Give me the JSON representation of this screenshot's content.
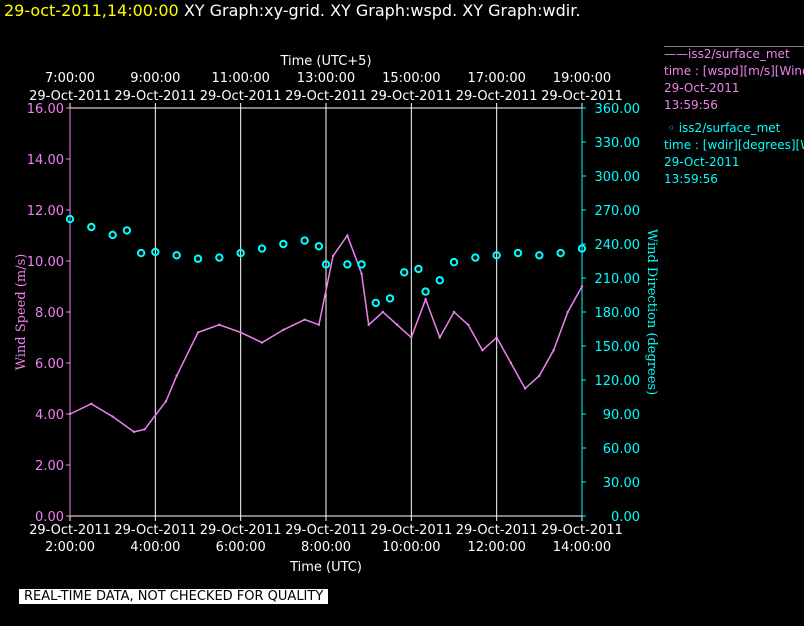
{
  "header": {
    "timestamp": "29-oct-2011,14:00:00",
    "titles": [
      "XY Graph:xy-grid.",
      "XY Graph:wspd.",
      "XY Graph:wdir."
    ]
  },
  "legend": {
    "wspd": {
      "name": "iss2/surface_met",
      "desc": "time : [wspd][m/s][Wind",
      "date": "29-Oct-2011",
      "time": "13:59:56"
    },
    "wdir": {
      "name": "iss2/surface_met",
      "desc": "time : [wdir][degrees][Wind",
      "date": "29-Oct-2011",
      "time": "13:59:56"
    }
  },
  "notice": "REAL-TIME DATA, NOT CHECKED FOR QUALITY",
  "colors": {
    "wspd": "#ee82ee",
    "wdir": "#00ffff",
    "grid": "#ffffff",
    "background": "#000000",
    "timestamp": "#ffff00"
  },
  "chart_data": {
    "type": "line",
    "xlabel": "Time (UTC)",
    "top_axis_label": "Time (UTC+5)",
    "x_range": [
      "2011-10-29 02:00",
      "2011-10-29 14:00"
    ],
    "x_ticks_bottom": [
      {
        "date": "29-Oct-2011",
        "time": "2:00:00"
      },
      {
        "date": "29-Oct-2011",
        "time": "4:00:00"
      },
      {
        "date": "29-Oct-2011",
        "time": "6:00:00"
      },
      {
        "date": "29-Oct-2011",
        "time": "8:00:00"
      },
      {
        "date": "29-Oct-2011",
        "time": "10:00:00"
      },
      {
        "date": "29-Oct-2011",
        "time": "12:00:00"
      },
      {
        "date": "29-Oct-2011",
        "time": "14:00:00"
      }
    ],
    "x_ticks_top": [
      {
        "time": "7:00:00",
        "date": "29-Oct-2011"
      },
      {
        "time": "9:00:00",
        "date": "29-Oct-2011"
      },
      {
        "time": "11:00:00",
        "date": "29-Oct-2011"
      },
      {
        "time": "13:00:00",
        "date": "29-Oct-2011"
      },
      {
        "time": "15:00:00",
        "date": "29-Oct-2011"
      },
      {
        "time": "17:00:00",
        "date": "29-Oct-2011"
      },
      {
        "time": "19:00:00",
        "date": "29-Oct-2011"
      }
    ],
    "vertical_grid": true,
    "left_axis": {
      "label": "Wind Speed (m/s)",
      "range": [
        0,
        16
      ],
      "ticks": [
        "0.00",
        "2.00",
        "4.00",
        "6.00",
        "8.00",
        "10.00",
        "12.00",
        "14.00",
        "16.00"
      ]
    },
    "right_axis": {
      "label": "Wind Direction (degrees)",
      "range": [
        0,
        360
      ],
      "ticks": [
        "0.00",
        "30.00",
        "60.00",
        "90.00",
        "120.00",
        "150.00",
        "180.00",
        "210.00",
        "240.00",
        "270.00",
        "300.00",
        "330.00",
        "360.00"
      ]
    },
    "series": [
      {
        "name": "iss2/surface_met",
        "variable": "wspd",
        "units": "m/s",
        "style": "line",
        "axis": "left",
        "x": [
          "2011-10-29 02:00",
          "2011-10-29 02:30",
          "2011-10-29 03:00",
          "2011-10-29 03:30",
          "2011-10-29 03:45",
          "2011-10-29 04:15",
          "2011-10-29 04:30",
          "2011-10-29 05:00",
          "2011-10-29 05:30",
          "2011-10-29 06:00",
          "2011-10-29 06:30",
          "2011-10-29 07:00",
          "2011-10-29 07:30",
          "2011-10-29 07:50",
          "2011-10-29 08:10",
          "2011-10-29 08:30",
          "2011-10-29 08:50",
          "2011-10-29 09:00",
          "2011-10-29 09:20",
          "2011-10-29 09:40",
          "2011-10-29 10:00",
          "2011-10-29 10:20",
          "2011-10-29 10:40",
          "2011-10-29 11:00",
          "2011-10-29 11:20",
          "2011-10-29 11:40",
          "2011-10-29 12:00",
          "2011-10-29 12:20",
          "2011-10-29 12:40",
          "2011-10-29 13:00",
          "2011-10-29 13:20",
          "2011-10-29 13:40",
          "2011-10-29 14:00"
        ],
        "values": [
          4.0,
          4.4,
          3.9,
          3.3,
          3.4,
          4.5,
          5.5,
          7.2,
          7.5,
          7.2,
          6.8,
          7.3,
          7.7,
          7.5,
          10.2,
          11.0,
          9.5,
          7.5,
          8.0,
          7.5,
          7.0,
          8.5,
          7.0,
          8.0,
          7.5,
          6.5,
          7.0,
          6.0,
          5.0,
          5.5,
          6.5,
          8.0,
          9.0
        ]
      },
      {
        "name": "iss2/surface_met",
        "variable": "wdir",
        "units": "degrees",
        "style": "markers",
        "axis": "right",
        "x": [
          "2011-10-29 02:00",
          "2011-10-29 02:30",
          "2011-10-29 03:00",
          "2011-10-29 03:20",
          "2011-10-29 03:40",
          "2011-10-29 04:00",
          "2011-10-29 04:30",
          "2011-10-29 05:00",
          "2011-10-29 05:30",
          "2011-10-29 06:00",
          "2011-10-29 06:30",
          "2011-10-29 07:00",
          "2011-10-29 07:30",
          "2011-10-29 07:50",
          "2011-10-29 08:00",
          "2011-10-29 08:30",
          "2011-10-29 08:50",
          "2011-10-29 09:10",
          "2011-10-29 09:30",
          "2011-10-29 09:50",
          "2011-10-29 10:10",
          "2011-10-29 10:20",
          "2011-10-29 10:40",
          "2011-10-29 11:00",
          "2011-10-29 11:30",
          "2011-10-29 12:00",
          "2011-10-29 12:30",
          "2011-10-29 13:00",
          "2011-10-29 13:30",
          "2011-10-29 14:00"
        ],
        "values": [
          262,
          255,
          248,
          252,
          232,
          233,
          230,
          227,
          228,
          232,
          236,
          240,
          243,
          238,
          222,
          222,
          222,
          188,
          192,
          215,
          218,
          198,
          208,
          224,
          228,
          230,
          232,
          230,
          232,
          236
        ]
      }
    ]
  }
}
